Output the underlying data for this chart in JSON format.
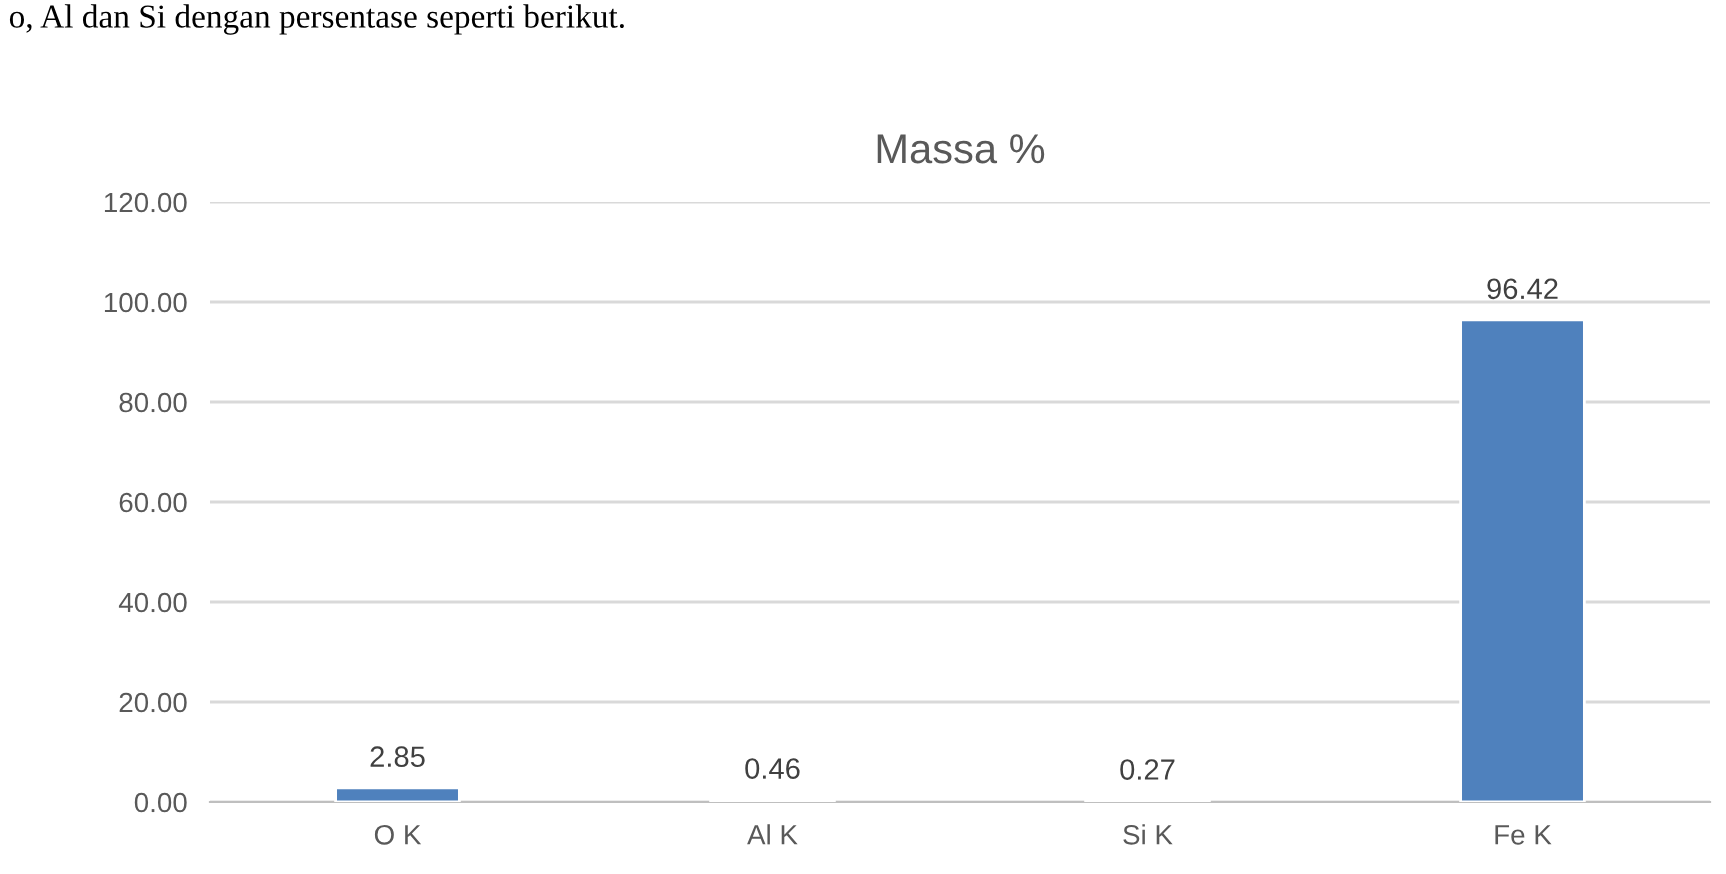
{
  "chart_data": {
    "type": "bar",
    "title": "Massa %",
    "annotations": [
      "o, Al dan Si dengan persentase seperti berikut."
    ],
    "categories": [
      "O K",
      "Al K",
      "Si K",
      "Fe K"
    ],
    "values": [
      2.85,
      0.46,
      0.27,
      96.42
    ],
    "value_labels": [
      "2.85",
      "0.46",
      "0.27",
      "96.42"
    ],
    "color": "#4f81bd",
    "ylim": [
      0,
      120
    ],
    "yticks": [
      {
        "value": 0,
        "label": "0.00"
      },
      {
        "value": 20,
        "label": "20.00"
      },
      {
        "value": 40,
        "label": "40.00"
      },
      {
        "value": 60,
        "label": "60.00"
      },
      {
        "value": 80,
        "label": "80.00"
      },
      {
        "value": 100,
        "label": "100.00"
      },
      {
        "value": 120,
        "label": "120.00"
      }
    ],
    "grid": "y"
  }
}
